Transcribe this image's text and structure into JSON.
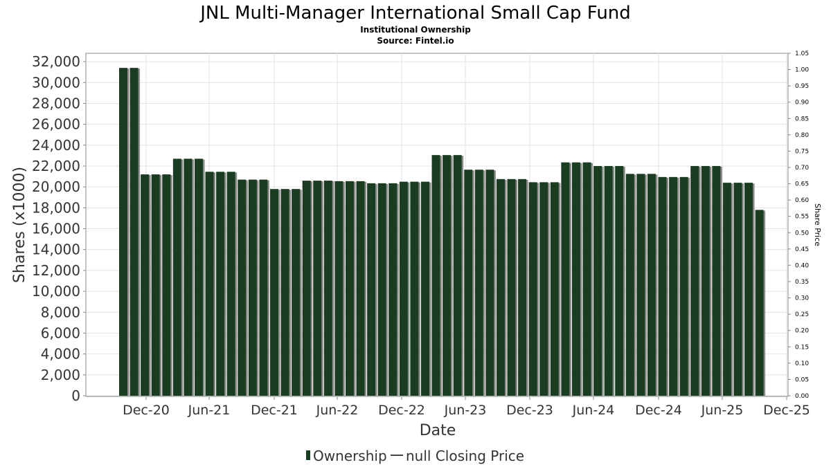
{
  "chart_data": {
    "type": "bar",
    "title": "JNL Multi-Manager International Small Cap Fund",
    "subtitle": "Institutional Ownership",
    "source": "Source: Fintel.io",
    "xlabel": "Date",
    "ylabel": "Shares (x1000)",
    "y2label": "Share Price",
    "ylim": [
      0,
      32800
    ],
    "y2lim": [
      0,
      1.05
    ],
    "grid": true,
    "legend_position": "bottom",
    "bar_color": "#1a3d22",
    "x_tick_labels": [
      "Dec-20",
      "Jun-21",
      "Dec-21",
      "Jun-22",
      "Dec-22",
      "Jun-23",
      "Dec-23",
      "Jun-24",
      "Dec-24",
      "Jun-25",
      "Dec-25"
    ],
    "y_tick_labels": [
      "0",
      "2,000",
      "4,000",
      "6,000",
      "8,000",
      "10,000",
      "12,000",
      "14,000",
      "16,000",
      "18,000",
      "20,000",
      "22,000",
      "24,000",
      "26,000",
      "28,000",
      "30,000",
      "32,000"
    ],
    "y2_tick_labels": [
      "0.00",
      "0.05",
      "0.10",
      "0.15",
      "0.20",
      "0.25",
      "0.30",
      "0.35",
      "0.40",
      "0.45",
      "0.50",
      "0.55",
      "0.60",
      "0.65",
      "0.70",
      "0.75",
      "0.80",
      "0.85",
      "0.90",
      "0.95",
      "1.00",
      "1.05"
    ],
    "series": [
      {
        "name": "Ownership",
        "values": [
          31400,
          31400,
          21200,
          21200,
          21200,
          22700,
          22700,
          22700,
          21450,
          21450,
          21450,
          20700,
          20700,
          20700,
          19800,
          19800,
          19800,
          20600,
          20600,
          20600,
          20550,
          20550,
          20550,
          20350,
          20350,
          20350,
          20500,
          20500,
          20500,
          23050,
          23050,
          23050,
          21650,
          21650,
          21650,
          20750,
          20750,
          20750,
          20450,
          20450,
          20450,
          22350,
          22350,
          22350,
          22000,
          22000,
          22000,
          21250,
          21250,
          21250,
          20950,
          20950,
          20950,
          22000,
          22000,
          22000,
          20400,
          20400,
          20400,
          17800
        ]
      }
    ],
    "legend": [
      {
        "symbol": "bar",
        "label": "Ownership"
      },
      {
        "symbol": "line",
        "label": "null Closing Price"
      }
    ]
  }
}
